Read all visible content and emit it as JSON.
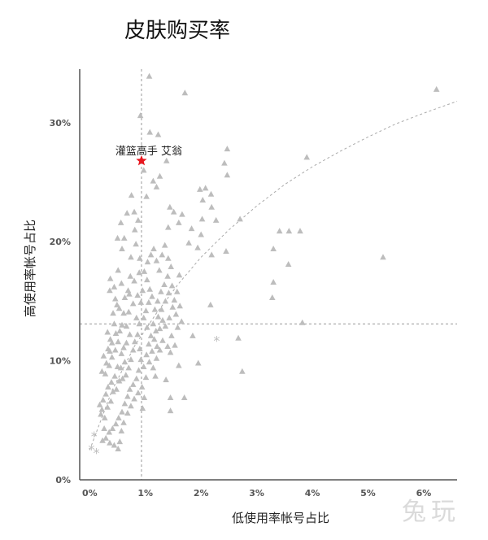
{
  "chart_data": {
    "type": "scatter",
    "title": "皮肤购买率",
    "xlabel": "低使用率帐号占比",
    "ylabel": "高使用率帐号占比",
    "xlim": [
      -0.18,
      6.6
    ],
    "ylim": [
      0,
      34.5
    ],
    "x_ticks": [
      0,
      1,
      2,
      3,
      4,
      5,
      6
    ],
    "x_tick_labels": [
      "0%",
      "1%",
      "2%",
      "3%",
      "4%",
      "5%",
      "6%"
    ],
    "y_ticks": [
      0,
      10,
      20,
      30
    ],
    "y_tick_labels": [
      "0%",
      "10%",
      "20%",
      "30%"
    ],
    "reference_lines": {
      "x": 0.93,
      "y": 13.1
    },
    "colors": {
      "points": "#bdbdbd",
      "highlight": "#e8171f",
      "reference": "#999999"
    },
    "highlight": {
      "label": "灌篮高手 艾翁",
      "x": 0.93,
      "y": 26.8
    },
    "star_points": [
      [
        0.08,
        3.7
      ],
      [
        0.03,
        2.6
      ],
      [
        0.12,
        2.3
      ],
      [
        2.28,
        11.7
      ]
    ],
    "trend": [
      [
        0.0,
        2.5
      ],
      [
        0.4,
        7.5
      ],
      [
        0.8,
        11.2
      ],
      [
        1.2,
        14.0
      ],
      [
        1.6,
        16.5
      ],
      [
        2.0,
        18.7
      ],
      [
        2.5,
        21.0
      ],
      [
        3.0,
        23.0
      ],
      [
        3.5,
        24.8
      ],
      [
        4.0,
        26.3
      ],
      [
        4.5,
        27.6
      ],
      [
        5.0,
        28.8
      ],
      [
        5.5,
        29.9
      ],
      [
        6.0,
        30.8
      ],
      [
        6.6,
        31.8
      ]
    ],
    "points": [
      [
        1.07,
        33.9
      ],
      [
        1.71,
        32.5
      ],
      [
        6.23,
        32.8
      ],
      [
        1.08,
        29.2
      ],
      [
        1.23,
        29.0
      ],
      [
        0.91,
        30.6
      ],
      [
        2.47,
        27.8
      ],
      [
        2.42,
        26.6
      ],
      [
        2.47,
        25.6
      ],
      [
        3.9,
        27.1
      ],
      [
        1.38,
        26.8
      ],
      [
        1.26,
        25.5
      ],
      [
        1.2,
        24.6
      ],
      [
        1.14,
        25.1
      ],
      [
        0.97,
        26.0
      ],
      [
        1.02,
        23.8
      ],
      [
        0.75,
        23.9
      ],
      [
        0.8,
        22.5
      ],
      [
        0.67,
        22.4
      ],
      [
        0.87,
        21.8
      ],
      [
        0.81,
        21.0
      ],
      [
        1.44,
        22.9
      ],
      [
        1.51,
        22.5
      ],
      [
        1.41,
        21.2
      ],
      [
        1.66,
        22.3
      ],
      [
        1.6,
        21.6
      ],
      [
        1.83,
        21.1
      ],
      [
        1.98,
        24.4
      ],
      [
        2.08,
        24.5
      ],
      [
        2.03,
        23.5
      ],
      [
        2.18,
        24.0
      ],
      [
        2.19,
        22.9
      ],
      [
        2.27,
        21.8
      ],
      [
        2.02,
        21.9
      ],
      [
        2.0,
        20.6
      ],
      [
        1.94,
        19.5
      ],
      [
        1.78,
        19.9
      ],
      [
        2.19,
        18.9
      ],
      [
        2.45,
        19.2
      ],
      [
        2.7,
        21.9
      ],
      [
        3.41,
        20.9
      ],
      [
        3.58,
        20.9
      ],
      [
        3.78,
        20.9
      ],
      [
        3.3,
        19.4
      ],
      [
        3.57,
        18.1
      ],
      [
        5.27,
        18.7
      ],
      [
        3.3,
        16.6
      ],
      [
        3.28,
        15.3
      ],
      [
        3.82,
        13.2
      ],
      [
        2.17,
        14.7
      ],
      [
        2.67,
        11.9
      ],
      [
        1.85,
        12.1
      ],
      [
        1.95,
        9.8
      ],
      [
        2.74,
        9.1
      ],
      [
        1.45,
        10.7
      ],
      [
        1.6,
        9.6
      ],
      [
        1.45,
        6.9
      ],
      [
        1.45,
        5.8
      ],
      [
        1.7,
        6.9
      ],
      [
        1.37,
        8.4
      ],
      [
        1.18,
        8.7
      ],
      [
        0.56,
        21.6
      ],
      [
        0.62,
        20.3
      ],
      [
        0.5,
        20.3
      ],
      [
        0.58,
        19.4
      ],
      [
        0.51,
        17.6
      ],
      [
        0.57,
        16.5
      ],
      [
        0.44,
        16.2
      ],
      [
        0.37,
        16.9
      ],
      [
        0.36,
        15.9
      ],
      [
        0.63,
        15.3
      ],
      [
        0.69,
        15.9
      ],
      [
        0.71,
        15.6
      ],
      [
        0.74,
        18.7
      ],
      [
        0.73,
        17.1
      ],
      [
        0.8,
        16.7
      ],
      [
        0.78,
        14.8
      ],
      [
        0.84,
        13.6
      ],
      [
        0.89,
        13.1
      ],
      [
        0.49,
        14.7
      ],
      [
        0.58,
        13.0
      ],
      [
        0.66,
        12.9
      ],
      [
        0.72,
        12.2
      ],
      [
        0.54,
        12.5
      ],
      [
        0.47,
        12.3
      ],
      [
        0.44,
        13.1
      ],
      [
        0.32,
        12.4
      ],
      [
        0.37,
        11.8
      ],
      [
        0.33,
        11.0
      ],
      [
        0.25,
        10.4
      ],
      [
        0.22,
        9.1
      ],
      [
        0.28,
        8.9
      ],
      [
        0.35,
        9.6
      ],
      [
        0.4,
        10.3
      ],
      [
        0.46,
        10.9
      ],
      [
        0.51,
        11.6
      ],
      [
        0.57,
        10.6
      ],
      [
        0.61,
        11.1
      ],
      [
        0.66,
        11.5
      ],
      [
        0.63,
        9.9
      ],
      [
        0.56,
        9.4
      ],
      [
        0.5,
        9.5
      ],
      [
        0.45,
        8.7
      ],
      [
        0.39,
        8.2
      ],
      [
        0.33,
        7.8
      ],
      [
        0.29,
        7.2
      ],
      [
        0.24,
        6.7
      ],
      [
        0.22,
        5.9
      ],
      [
        0.2,
        5.5
      ],
      [
        0.27,
        5.2
      ],
      [
        0.32,
        6.1
      ],
      [
        0.38,
        6.6
      ],
      [
        0.42,
        7.4
      ],
      [
        0.48,
        7.6
      ],
      [
        0.53,
        8.3
      ],
      [
        0.59,
        8.5
      ],
      [
        0.65,
        8.8
      ],
      [
        0.7,
        9.4
      ],
      [
        0.74,
        10.1
      ],
      [
        0.78,
        10.9
      ],
      [
        0.81,
        11.6
      ],
      [
        0.86,
        12.2
      ],
      [
        0.9,
        11.0
      ],
      [
        0.92,
        10.1
      ],
      [
        0.88,
        9.2
      ],
      [
        0.84,
        8.5
      ],
      [
        0.78,
        8.0
      ],
      [
        0.72,
        7.6
      ],
      [
        0.68,
        7.0
      ],
      [
        0.63,
        6.4
      ],
      [
        0.58,
        5.7
      ],
      [
        0.52,
        5.2
      ],
      [
        0.47,
        4.7
      ],
      [
        0.41,
        4.3
      ],
      [
        0.35,
        4.0
      ],
      [
        0.29,
        3.5
      ],
      [
        0.23,
        3.3
      ],
      [
        0.36,
        3.1
      ],
      [
        0.44,
        2.9
      ],
      [
        0.54,
        3.2
      ],
      [
        0.57,
        4.1
      ],
      [
        0.61,
        4.8
      ],
      [
        0.68,
        5.6
      ],
      [
        0.74,
        6.2
      ],
      [
        0.8,
        6.8
      ],
      [
        0.87,
        7.3
      ],
      [
        0.94,
        7.8
      ],
      [
        0.98,
        6.9
      ],
      [
        1.01,
        8.6
      ],
      [
        0.97,
        9.5
      ],
      [
        1.02,
        10.5
      ],
      [
        1.06,
        11.4
      ],
      [
        1.1,
        12.1
      ],
      [
        1.03,
        12.8
      ],
      [
        0.97,
        13.6
      ],
      [
        1.01,
        14.2
      ],
      [
        1.06,
        14.9
      ],
      [
        1.12,
        15.4
      ],
      [
        1.08,
        16.0
      ],
      [
        1.03,
        16.8
      ],
      [
        0.98,
        17.5
      ],
      [
        1.04,
        18.3
      ],
      [
        1.1,
        18.9
      ],
      [
        1.15,
        19.4
      ],
      [
        1.2,
        18.4
      ],
      [
        1.25,
        17.6
      ],
      [
        1.3,
        18.9
      ],
      [
        1.35,
        19.7
      ],
      [
        1.41,
        18.6
      ],
      [
        1.46,
        17.9
      ],
      [
        1.4,
        17.1
      ],
      [
        1.34,
        16.4
      ],
      [
        1.28,
        15.8
      ],
      [
        1.22,
        15.0
      ],
      [
        1.17,
        14.3
      ],
      [
        1.23,
        13.7
      ],
      [
        1.29,
        14.3
      ],
      [
        1.36,
        15.0
      ],
      [
        1.42,
        15.7
      ],
      [
        1.48,
        16.3
      ],
      [
        1.52,
        15.1
      ],
      [
        1.57,
        15.8
      ],
      [
        1.62,
        14.6
      ],
      [
        1.55,
        13.9
      ],
      [
        1.49,
        14.5
      ],
      [
        1.43,
        13.6
      ],
      [
        1.36,
        12.9
      ],
      [
        1.31,
        13.4
      ],
      [
        1.26,
        12.7
      ],
      [
        1.19,
        12.5
      ],
      [
        1.14,
        13.1
      ],
      [
        1.16,
        11.8
      ],
      [
        1.21,
        11.2
      ],
      [
        1.12,
        10.8
      ],
      [
        1.07,
        9.9
      ],
      [
        1.14,
        9.4
      ],
      [
        1.2,
        10.2
      ],
      [
        1.26,
        10.9
      ],
      [
        1.31,
        11.7
      ],
      [
        1.4,
        11.2
      ],
      [
        1.47,
        12.1
      ],
      [
        1.58,
        12.8
      ],
      [
        1.65,
        13.3
      ],
      [
        1.53,
        11.3
      ],
      [
        1.61,
        17.2
      ],
      [
        0.83,
        19.8
      ],
      [
        0.9,
        18.6
      ],
      [
        0.95,
        15.9
      ],
      [
        0.92,
        14.9
      ],
      [
        0.86,
        15.5
      ],
      [
        0.89,
        17.4
      ],
      [
        0.7,
        14.1
      ],
      [
        0.61,
        14.0
      ],
      [
        0.53,
        14.4
      ],
      [
        0.42,
        14.0
      ],
      [
        0.46,
        15.2
      ],
      [
        0.4,
        11.5
      ],
      [
        0.3,
        9.8
      ],
      [
        0.36,
        10.8
      ],
      [
        0.18,
        6.3
      ],
      [
        0.26,
        4.3
      ],
      [
        0.51,
        2.6
      ],
      [
        0.95,
        6.0
      ]
    ]
  }
}
